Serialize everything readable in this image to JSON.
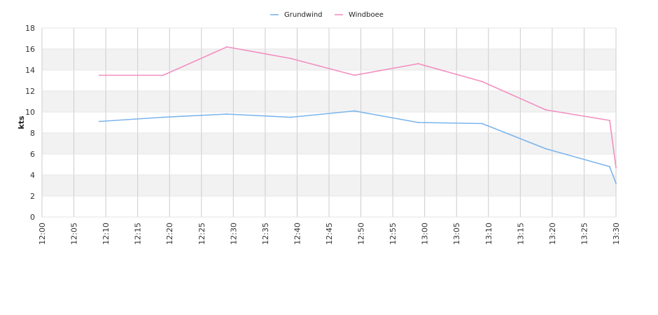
{
  "chart_data": {
    "type": "line",
    "title": "",
    "xlabel": "",
    "ylabel": "kts",
    "ylim": [
      0,
      18
    ],
    "yticks": [
      0,
      2,
      4,
      6,
      8,
      10,
      12,
      14,
      16,
      18
    ],
    "xlim": [
      "12:00",
      "13:30"
    ],
    "xticks": [
      "12:00",
      "12:05",
      "12:10",
      "12:15",
      "12:20",
      "12:25",
      "12:30",
      "12:35",
      "12:40",
      "12:45",
      "12:50",
      "12:55",
      "13:00",
      "13:05",
      "13:10",
      "13:15",
      "13:20",
      "13:25",
      "13:30"
    ],
    "grid": "vertical lines and alternating horizontal bands",
    "legend_position": "top-center",
    "series": [
      {
        "name": "Grundwind",
        "color": "#7cb5ec",
        "x": [
          "12:09",
          "12:19",
          "12:29",
          "12:39",
          "12:49",
          "12:59",
          "13:09",
          "13:19",
          "13:29",
          "13:30"
        ],
        "values": [
          9.1,
          9.5,
          9.8,
          9.5,
          10.1,
          9.0,
          8.9,
          6.5,
          4.8,
          3.2
        ]
      },
      {
        "name": "Windboee",
        "color": "#f28fc0",
        "x": [
          "12:09",
          "12:19",
          "12:29",
          "12:39",
          "12:49",
          "12:59",
          "13:09",
          "13:19",
          "13:29",
          "13:30"
        ],
        "values": [
          13.5,
          13.5,
          16.2,
          15.1,
          13.5,
          14.6,
          12.9,
          10.2,
          9.2,
          4.7
        ]
      }
    ]
  }
}
